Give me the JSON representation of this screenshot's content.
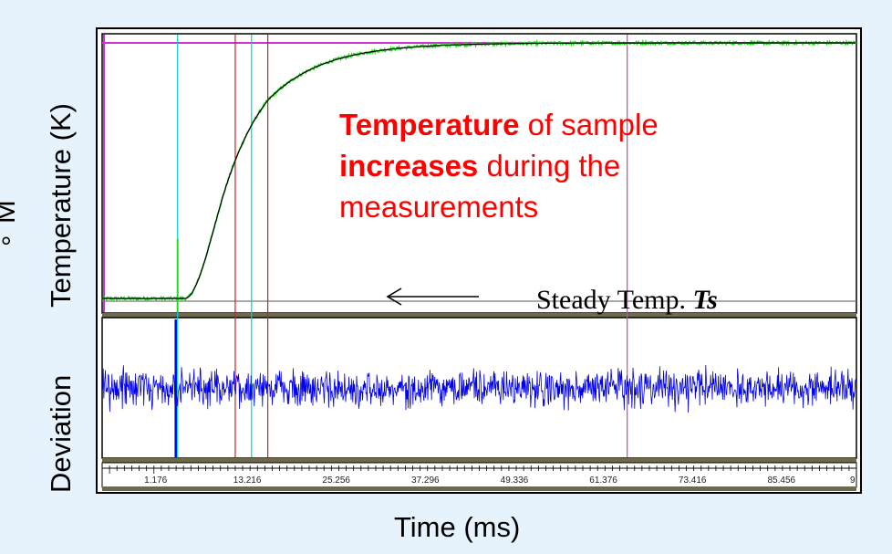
{
  "chart_data": {
    "type": "line",
    "xlabel": "Time (ms)",
    "ylabels": {
      "top_panel": "Temperature (K)",
      "bottom_panel": "Deviation",
      "degree_mark": "°",
      "clipped_letter": "M"
    },
    "x_tick_labels": [
      "1.176",
      "13.216",
      "25.256",
      "37.296",
      "49.336",
      "61.376",
      "73.416",
      "85.456",
      "9"
    ],
    "xlim": [
      -6,
      96
    ],
    "series": [
      {
        "color": "#22dd22",
        "model": "exponential-rise",
        "steady_start": 0.0,
        "steady_end": 1.0,
        "onset_ms": 5.2,
        "tau_ms": 7.5
      },
      {
        "color": "#000000",
        "model": "fit"
      },
      {
        "color": "#0000ee",
        "model": "noise"
      }
    ],
    "markers": [
      {
        "x": 4.2,
        "color": "#00d0d0"
      },
      {
        "x": 12.0,
        "color": "#cc2222"
      },
      {
        "x": 14.2,
        "color": "#00d0d0"
      },
      {
        "x": 16.4,
        "color": "#cc2222"
      },
      {
        "x": 65.0,
        "color": "#cc44cc"
      }
    ],
    "annotation": {
      "line1_bold": "Temperature",
      "line1_rest": " of sample",
      "line2_bold": "increases",
      "line2_rest": " during the",
      "line3": "measurements"
    },
    "steady_label": {
      "prefix": "Steady Temp. ",
      "symbol": "Ts"
    }
  }
}
